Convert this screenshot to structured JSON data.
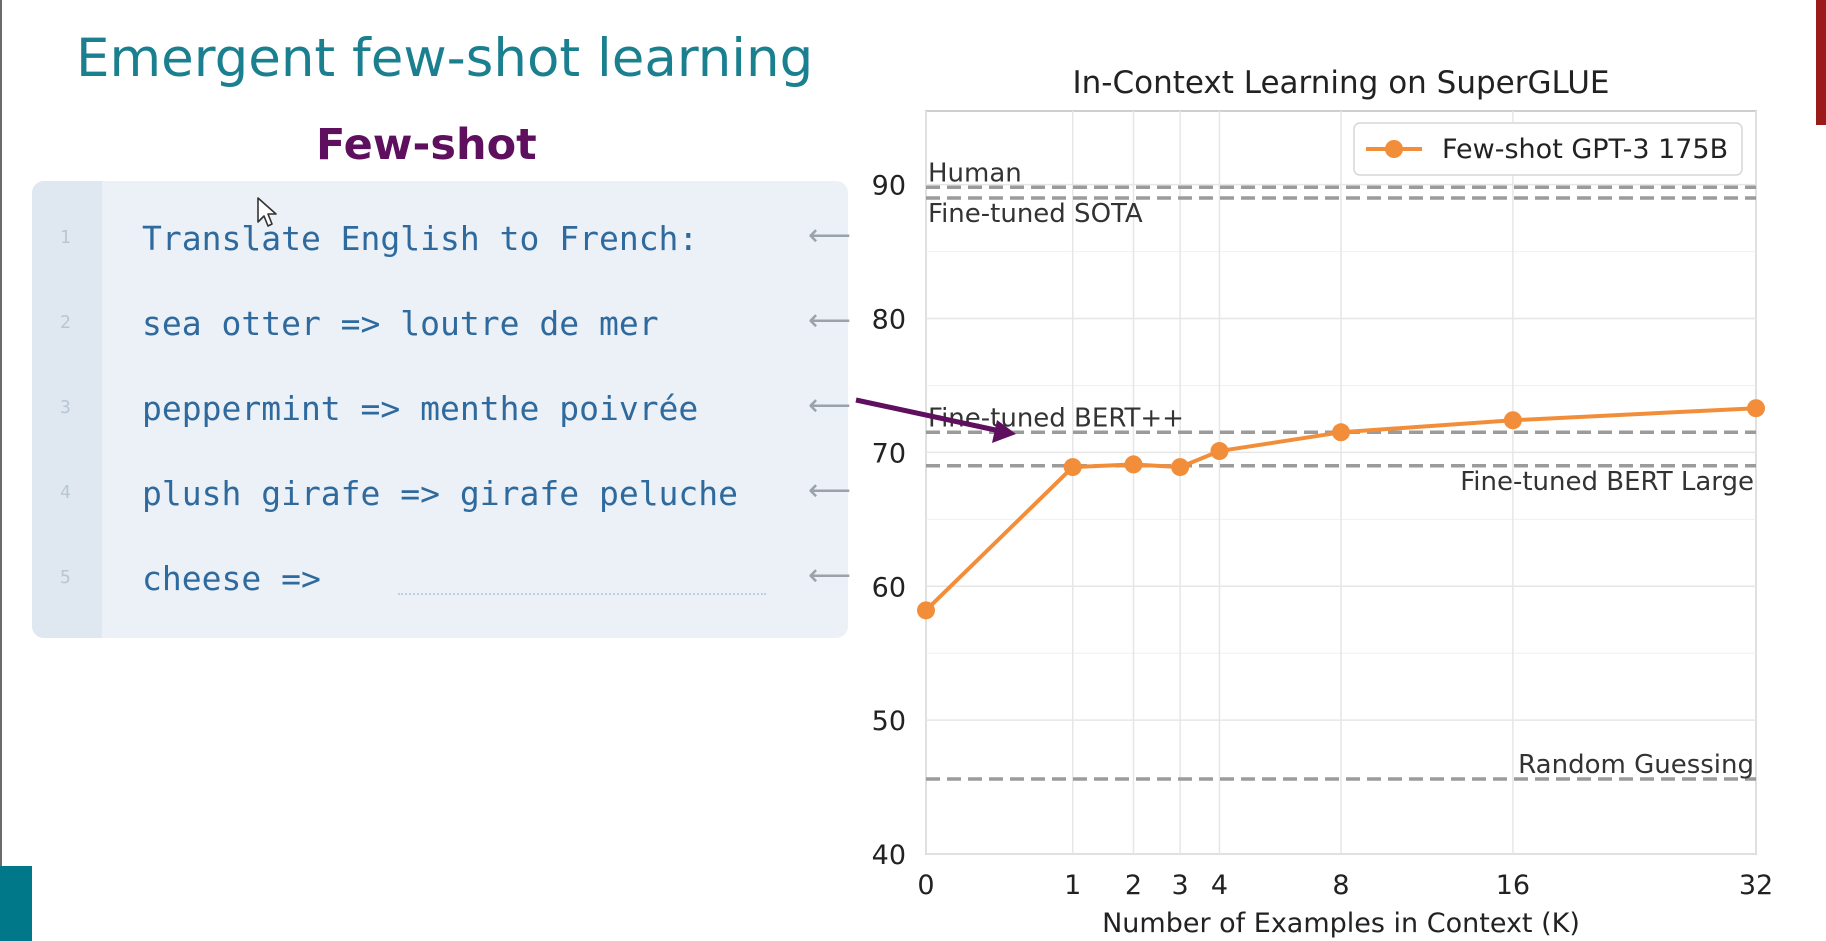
{
  "slide": {
    "title": "Emergent few-shot learning"
  },
  "panel": {
    "title": "Few-shot",
    "lines": [
      {
        "num": "1",
        "text": "Translate English to French:"
      },
      {
        "num": "2",
        "text": "sea otter => loutre de mer"
      },
      {
        "num": "3",
        "text": "peppermint => menthe poivrée"
      },
      {
        "num": "4",
        "text": "plush girafe => girafe peluche"
      },
      {
        "num": "5",
        "text": "cheese =>"
      }
    ],
    "arrow_glyph": "⟵"
  },
  "colors": {
    "title": "#1a7f8e",
    "panel_title": "#5e0f5e",
    "code_text": "#2f6a9e",
    "series": "#f28e3a",
    "reference_line": "#9b9b9b",
    "annotation_arrow": "#5e0f5e",
    "accent_bar": "#00788a"
  },
  "chart_data": {
    "type": "line",
    "title": "In-Context Learning on SuperGLUE",
    "xlabel": "Number of Examples in Context (K)",
    "ylabel": "",
    "xticks": [
      0,
      1,
      2,
      3,
      4,
      8,
      16,
      32
    ],
    "xtick_labels": [
      "0",
      "1",
      "2",
      "3",
      "4",
      "8",
      "16",
      "32"
    ],
    "yticks": [
      40,
      50,
      60,
      70,
      80,
      90
    ],
    "ytick_labels": [
      "40",
      "50",
      "60",
      "70",
      "80",
      "90"
    ],
    "ylim": [
      40,
      95.5
    ],
    "xlim": [
      0,
      32
    ],
    "x_scale": "sqrt",
    "grid": true,
    "legend": "top-right",
    "series": [
      {
        "name": "Few-shot GPT-3 175B",
        "x": [
          0,
          1,
          2,
          3,
          4,
          8,
          16,
          32
        ],
        "values": [
          58.2,
          68.9,
          69.1,
          68.9,
          70.1,
          71.5,
          72.4,
          73.3
        ]
      }
    ],
    "reference_lines": [
      {
        "label": "Human",
        "value": 89.8
      },
      {
        "label": "Fine-tuned SOTA",
        "value": 89.0
      },
      {
        "label": "Fine-tuned BERT++",
        "value": 71.5
      },
      {
        "label": "Fine-tuned BERT Large",
        "value": 69.0
      },
      {
        "label": "Random Guessing",
        "value": 45.6
      }
    ]
  }
}
